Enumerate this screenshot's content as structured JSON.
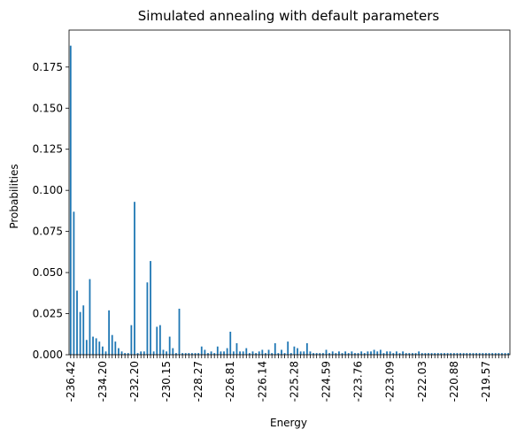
{
  "chart_data": {
    "type": "bar",
    "title": "Simulated annealing with default parameters",
    "xlabel": "Energy",
    "ylabel": "Probabilities",
    "ylim": [
      0,
      0.1975
    ],
    "yticks": [
      "0.000",
      "0.025",
      "0.050",
      "0.075",
      "0.100",
      "0.125",
      "0.150",
      "0.175"
    ],
    "xtick_labels": [
      "-236.42",
      "-234.20",
      "-232.20",
      "-230.15",
      "-228.27",
      "-226.81",
      "-226.14",
      "-225.28",
      "-224.59",
      "-223.76",
      "-223.09",
      "-222.03",
      "-220.88",
      "-219.57"
    ],
    "xtick_every": 10,
    "color": "#1f77b4",
    "grid": false,
    "values": [
      0.188,
      0.087,
      0.039,
      0.026,
      0.03,
      0.009,
      0.046,
      0.011,
      0.01,
      0.008,
      0.005,
      0.002,
      0.027,
      0.012,
      0.008,
      0.004,
      0.002,
      0.001,
      0.001,
      0.018,
      0.093,
      0.001,
      0.002,
      0.002,
      0.044,
      0.057,
      0.002,
      0.017,
      0.018,
      0.003,
      0.002,
      0.011,
      0.004,
      0.001,
      0.028,
      0.001,
      0.001,
      0.001,
      0.001,
      0.001,
      0.001,
      0.005,
      0.003,
      0.001,
      0.002,
      0.001,
      0.005,
      0.002,
      0.002,
      0.004,
      0.014,
      0.002,
      0.007,
      0.002,
      0.002,
      0.004,
      0.001,
      0.002,
      0.001,
      0.002,
      0.003,
      0.001,
      0.003,
      0.001,
      0.007,
      0.001,
      0.003,
      0.001,
      0.008,
      0.001,
      0.005,
      0.004,
      0.002,
      0.002,
      0.007,
      0.002,
      0.001,
      0.001,
      0.001,
      0.001,
      0.003,
      0.001,
      0.002,
      0.001,
      0.002,
      0.001,
      0.002,
      0.001,
      0.002,
      0.001,
      0.001,
      0.002,
      0.001,
      0.002,
      0.002,
      0.003,
      0.002,
      0.003,
      0.001,
      0.002,
      0.002,
      0.001,
      0.002,
      0.001,
      0.002,
      0.001,
      0.001,
      0.001,
      0.001,
      0.002,
      0.001,
      0.001,
      0.001,
      0.001,
      0.001,
      0.001,
      0.001,
      0.001,
      0.001,
      0.001,
      0.001,
      0.001,
      0.001,
      0.001,
      0.001,
      0.001,
      0.001,
      0.001,
      0.001,
      0.001,
      0.001,
      0.001,
      0.001,
      0.001,
      0.001,
      0.001,
      0.001,
      0.001
    ]
  }
}
